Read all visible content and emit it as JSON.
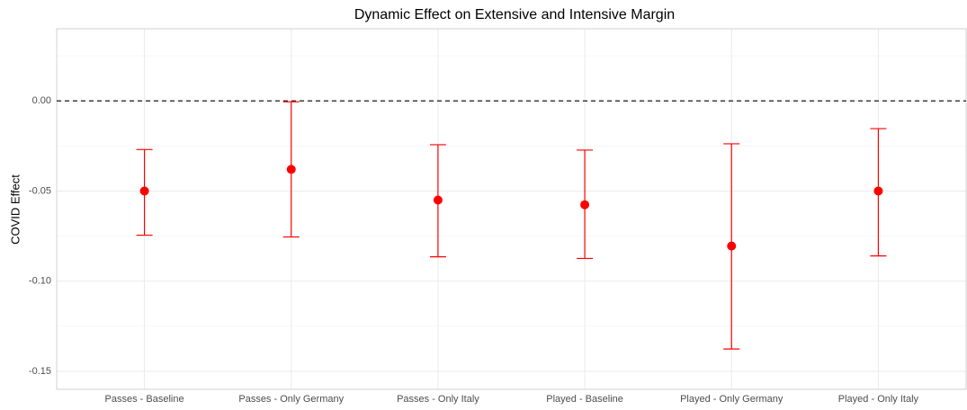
{
  "chart_data": {
    "type": "errorbar",
    "title": "Dynamic Effect on Extensive and Intensive Margin",
    "y_label": "COVID Effect",
    "categories": [
      "Passes -  Baseline",
      "Passes - Only Germany",
      "Passes - Only Italy",
      "Played -  Baseline",
      "Played - Only Germany",
      "Played - Only Italy"
    ],
    "series": [
      {
        "color": "#ff0000",
        "values": [
          -0.05,
          -0.038,
          -0.055,
          -0.0576,
          -0.0805,
          -0.05
        ],
        "lower": [
          -0.0745,
          -0.0755,
          -0.0865,
          -0.0874,
          -0.1376,
          -0.086
        ],
        "upper": [
          -0.027,
          -0.0005,
          -0.0243,
          -0.0273,
          -0.0238,
          -0.0154
        ]
      }
    ],
    "ylim": [
      -0.16,
      0.04
    ],
    "yticks": [
      {
        "value": -0.15,
        "label": "-0.15"
      },
      {
        "value": -0.1,
        "label": "-0.10"
      },
      {
        "value": -0.05,
        "label": "-0.05"
      },
      {
        "value": 0,
        "label": "0.00"
      }
    ],
    "hline": 0,
    "grid": true
  }
}
